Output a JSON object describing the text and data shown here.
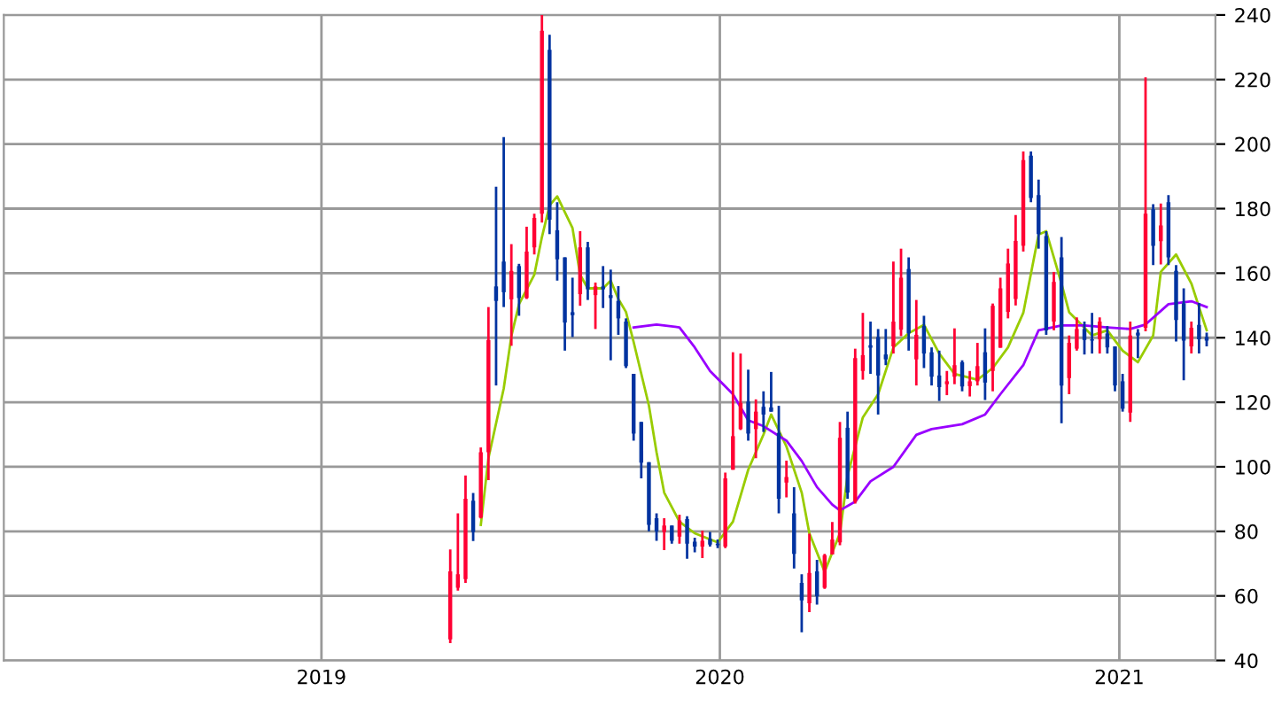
{
  "chart_data": {
    "type": "candlestick",
    "x": [
      "2019-04-29",
      "2019-05-06",
      "2019-05-13",
      "2019-05-20",
      "2019-05-27",
      "2019-06-03",
      "2019-06-10",
      "2019-06-17",
      "2019-06-24",
      "2019-07-01",
      "2019-07-08",
      "2019-07-15",
      "2019-07-22",
      "2019-07-29",
      "2019-08-05",
      "2019-08-12",
      "2019-08-19",
      "2019-08-26",
      "2019-09-02",
      "2019-09-09",
      "2019-09-16",
      "2019-09-23",
      "2019-09-30",
      "2019-10-07",
      "2019-10-14",
      "2019-10-21",
      "2019-10-28",
      "2019-11-04",
      "2019-11-11",
      "2019-11-18",
      "2019-11-25",
      "2019-12-02",
      "2019-12-09",
      "2019-12-16",
      "2019-12-23",
      "2019-12-30",
      "2020-01-06",
      "2020-01-13",
      "2020-01-20",
      "2020-01-27",
      "2020-02-03",
      "2020-02-10",
      "2020-02-17",
      "2020-02-24",
      "2020-03-02",
      "2020-03-09",
      "2020-03-16",
      "2020-03-23",
      "2020-03-30",
      "2020-04-06",
      "2020-04-13",
      "2020-04-20",
      "2020-04-27",
      "2020-05-04",
      "2020-05-11",
      "2020-05-18",
      "2020-05-25",
      "2020-06-01",
      "2020-06-08",
      "2020-06-15",
      "2020-06-22",
      "2020-06-29",
      "2020-07-06",
      "2020-07-13",
      "2020-07-20",
      "2020-07-27",
      "2020-08-03",
      "2020-08-10",
      "2020-08-17",
      "2020-08-24",
      "2020-08-31",
      "2020-09-07",
      "2020-09-14",
      "2020-09-21",
      "2020-09-28",
      "2020-10-05",
      "2020-10-12",
      "2020-10-19",
      "2020-10-26",
      "2020-11-02",
      "2020-11-09",
      "2020-11-16",
      "2020-11-23",
      "2020-11-30",
      "2020-12-07",
      "2020-12-14",
      "2020-12-21",
      "2020-12-28",
      "2021-01-04",
      "2021-01-11",
      "2021-01-18",
      "2021-01-25",
      "2021-02-01",
      "2021-02-08",
      "2021-02-15",
      "2021-02-22",
      "2021-03-01",
      "2021-03-08",
      "2021-03-15",
      "2021-03-22"
    ],
    "ohlc": [
      [
        46.5,
        74.4,
        45.4,
        67.6
      ],
      [
        62.5,
        85.6,
        61.6,
        66.7
      ],
      [
        65.2,
        97.3,
        64,
        90.1
      ],
      [
        89.5,
        91.9,
        77,
        79.8
      ],
      [
        84.3,
        106,
        84,
        104.5
      ],
      [
        104.5,
        149.5,
        95.9,
        139.3
      ],
      [
        155.9,
        186.8,
        125.2,
        151.4
      ],
      [
        163.6,
        202.2,
        149.5,
        154.1
      ],
      [
        151.9,
        169,
        137.5,
        160.7
      ],
      [
        162.2,
        162.9,
        146.8,
        152.3
      ],
      [
        152.3,
        174.4,
        152,
        166.7
      ],
      [
        168,
        178.4,
        165.8,
        177.1
      ],
      [
        178.4,
        240,
        175.7,
        235.1
      ],
      [
        229.2,
        233.9,
        172.1,
        176.6
      ],
      [
        173.3,
        182,
        157.7,
        164.3
      ],
      [
        164.9,
        164.9,
        136,
        144.7
      ],
      [
        147.9,
        158.6,
        140.2,
        147
      ],
      [
        153.5,
        173,
        149.9,
        168
      ],
      [
        168,
        169.7,
        151.7,
        155
      ],
      [
        153.2,
        157.1,
        142.7,
        155.9
      ],
      [
        155.9,
        162.2,
        149.2,
        155
      ],
      [
        153.2,
        161.1,
        133,
        152.3
      ],
      [
        151.4,
        156,
        140.9,
        146
      ],
      [
        145,
        146,
        130.6,
        131.2
      ],
      [
        128.8,
        128.8,
        108.1,
        110.3
      ],
      [
        113.9,
        113.9,
        96.4,
        101.3
      ],
      [
        101.4,
        101.4,
        80,
        82
      ],
      [
        84.1,
        85.6,
        77.1,
        80
      ],
      [
        79.8,
        84.1,
        74.2,
        81.8
      ],
      [
        81.8,
        81.8,
        76.2,
        77.1
      ],
      [
        78.4,
        85.2,
        76.2,
        83.4
      ],
      [
        83.8,
        84.7,
        71.5,
        76.2
      ],
      [
        76.8,
        78,
        73.5,
        75.3
      ],
      [
        75.3,
        80.2,
        71.7,
        77.1
      ],
      [
        77.7,
        79.8,
        75.3,
        75.9
      ],
      [
        76.2,
        77.5,
        74.8,
        75.7
      ],
      [
        75.3,
        98.2,
        74.8,
        96.4
      ],
      [
        99.1,
        135.5,
        99.1,
        109.5
      ],
      [
        111.7,
        135.1,
        111.4,
        119.8
      ],
      [
        120.2,
        130.1,
        108.1,
        110.3
      ],
      [
        111.7,
        120.9,
        102.7,
        117.1
      ],
      [
        118.6,
        123.4,
        110.8,
        116.2
      ],
      [
        118.4,
        129.4,
        117.1,
        117.1
      ],
      [
        110.5,
        118.9,
        85.6,
        90.1
      ],
      [
        95.1,
        101.9,
        90.5,
        96.8
      ],
      [
        85.6,
        93.7,
        68.5,
        73
      ],
      [
        64,
        66.7,
        48.7,
        58.6
      ],
      [
        57.7,
        79.3,
        55,
        67.1
      ],
      [
        67.6,
        71.2,
        57.3,
        59.9
      ],
      [
        62.5,
        73,
        62.2,
        72.6
      ],
      [
        72.9,
        82.9,
        72.9,
        77.5
      ],
      [
        76.6,
        113.9,
        75.7,
        109
      ],
      [
        112.1,
        117.1,
        90.1,
        92
      ],
      [
        89.2,
        136.6,
        88.6,
        133.7
      ],
      [
        129.7,
        147.7,
        127,
        134.6
      ],
      [
        137.7,
        145,
        128.8,
        136.9
      ],
      [
        140.2,
        142.7,
        116.2,
        128.3
      ],
      [
        134.8,
        142.7,
        131.5,
        133.3
      ],
      [
        137.3,
        163.6,
        135.1,
        145
      ],
      [
        142.5,
        167.6,
        140.5,
        158.6
      ],
      [
        161.3,
        164.9,
        136,
        141.4
      ],
      [
        133.3,
        151.7,
        125.2,
        140.9
      ],
      [
        143.6,
        146.8,
        130.6,
        135.1
      ],
      [
        135.5,
        137,
        125.2,
        127.9
      ],
      [
        128.3,
        136,
        120.4,
        124.7
      ],
      [
        125.6,
        129.7,
        122.2,
        126.5
      ],
      [
        127.9,
        142.9,
        125.6,
        131.5
      ],
      [
        132.4,
        133,
        123.4,
        124.9
      ],
      [
        125,
        129.7,
        121.8,
        126.5
      ],
      [
        126.5,
        138.4,
        125.2,
        131.2
      ],
      [
        135.5,
        142.9,
        120.7,
        126.1
      ],
      [
        129.7,
        150.6,
        123.4,
        149.9
      ],
      [
        136.9,
        158.6,
        136.9,
        155.3
      ],
      [
        148,
        167.6,
        146,
        163
      ],
      [
        152,
        178,
        150,
        170
      ],
      [
        168.5,
        197.7,
        166.7,
        195
      ],
      [
        196.4,
        197.7,
        182,
        183.3
      ],
      [
        184.2,
        189,
        167.6,
        172.1
      ],
      [
        171.5,
        173,
        140.9,
        142.3
      ],
      [
        145,
        160.4,
        142.3,
        157.3
      ],
      [
        164.9,
        171.2,
        113.5,
        125.2
      ],
      [
        127.5,
        140.7,
        122.5,
        138.4
      ],
      [
        136.6,
        146.3,
        136,
        142.7
      ],
      [
        142.7,
        145,
        134.8,
        139.3
      ],
      [
        139.5,
        147.7,
        135.1,
        139.1
      ],
      [
        139.5,
        146.3,
        135.1,
        145
      ],
      [
        141.3,
        143.6,
        135.1,
        137
      ],
      [
        137.3,
        137.3,
        123.4,
        125.2
      ],
      [
        126.5,
        128.8,
        117.1,
        118
      ],
      [
        116.8,
        145,
        113.9,
        140.7
      ],
      [
        141.6,
        142.7,
        133.7,
        140.7
      ],
      [
        143.1,
        220.7,
        142,
        178.4
      ],
      [
        179.8,
        181.4,
        162.5,
        168.5
      ],
      [
        169.9,
        181.6,
        162.7,
        174.8
      ],
      [
        182,
        184.2,
        162.5,
        164.9
      ],
      [
        160.7,
        162.5,
        138.8,
        145.5
      ],
      [
        150.6,
        155.3,
        126.8,
        139.1
      ],
      [
        137.3,
        145,
        135.1,
        143.1
      ],
      [
        144,
        150.8,
        135.1,
        139.5
      ],
      [
        140.2,
        141.6,
        137.3,
        139.1
      ]
    ],
    "colors": [
      "#ff0033",
      "#ff0033",
      "#ff0033",
      "#0033a0",
      "#ff0033",
      "#ff0033",
      "#0033a0",
      "#0033a0",
      "#ff0033",
      "#0033a0",
      "#ff0033",
      "#ff0033",
      "#ff0033",
      "#0033a0",
      "#0033a0",
      "#0033a0",
      "#0033a0",
      "#ff0033",
      "#0033a0",
      "#ff0033",
      "#0033a0",
      "#0033a0",
      "#0033a0",
      "#0033a0",
      "#0033a0",
      "#0033a0",
      "#0033a0",
      "#0033a0",
      "#ff0033",
      "#0033a0",
      "#ff0033",
      "#0033a0",
      "#0033a0",
      "#ff0033",
      "#0033a0",
      "#0033a0",
      "#ff0033",
      "#ff0033",
      "#ff0033",
      "#0033a0",
      "#ff0033",
      "#0033a0",
      "#0033a0",
      "#0033a0",
      "#ff0033",
      "#0033a0",
      "#0033a0",
      "#ff0033",
      "#0033a0",
      "#ff0033",
      "#ff0033",
      "#ff0033",
      "#0033a0",
      "#ff0033",
      "#ff0033",
      "#0033a0",
      "#0033a0",
      "#0033a0",
      "#ff0033",
      "#ff0033",
      "#0033a0",
      "#ff0033",
      "#0033a0",
      "#0033a0",
      "#0033a0",
      "#ff0033",
      "#ff0033",
      "#0033a0",
      "#ff0033",
      "#ff0033",
      "#0033a0",
      "#ff0033",
      "#ff0033",
      "#ff0033",
      "#ff0033",
      "#ff0033",
      "#0033a0",
      "#0033a0",
      "#0033a0",
      "#ff0033",
      "#0033a0",
      "#ff0033",
      "#ff0033",
      "#0033a0",
      "#0033a0",
      "#ff0033",
      "#0033a0",
      "#0033a0",
      "#0033a0",
      "#ff0033",
      "#0033a0",
      "#ff0033",
      "#0033a0",
      "#ff0033",
      "#0033a0",
      "#0033a0",
      "#0033a0",
      "#ff0033",
      "#0033a0",
      "#0033a0"
    ],
    "series": [
      {
        "type": "line",
        "color": "#99cc00",
        "x": [
          "2019-05-27",
          "2019-06-03",
          "2019-06-17",
          "2019-06-24",
          "2019-07-01",
          "2019-07-15",
          "2019-07-22",
          "2019-07-29",
          "2019-08-05",
          "2019-08-19",
          "2019-08-26",
          "2019-09-02",
          "2019-09-16",
          "2019-09-23",
          "2019-09-30",
          "2019-10-07",
          "2019-10-14",
          "2019-10-28",
          "2019-11-04",
          "2019-11-11",
          "2019-11-25",
          "2019-12-09",
          "2019-12-30",
          "2020-01-13",
          "2020-01-27",
          "2020-02-10",
          "2020-02-17",
          "2020-03-02",
          "2020-03-16",
          "2020-03-23",
          "2020-04-06",
          "2020-04-20",
          "2020-04-27",
          "2020-05-11",
          "2020-05-25",
          "2020-06-08",
          "2020-06-22",
          "2020-07-06",
          "2020-07-20",
          "2020-08-03",
          "2020-08-24",
          "2020-09-07",
          "2020-09-21",
          "2020-10-05",
          "2020-10-19",
          "2020-10-26",
          "2020-11-09",
          "2020-11-16",
          "2020-12-07",
          "2020-12-21",
          "2021-01-04",
          "2021-01-18",
          "2021-02-01",
          "2021-02-08",
          "2021-02-22",
          "2021-03-08",
          "2021-03-15",
          "2021-03-22"
        ],
        "values": [
          82,
          102.7,
          124.3,
          140.5,
          150.4,
          159.5,
          171.2,
          181,
          183.8,
          174,
          159.5,
          155.3,
          155.3,
          157.7,
          152,
          148,
          138.7,
          119,
          104.5,
          92,
          83,
          79.4,
          76.6,
          83,
          99.1,
          110,
          116.2,
          106.3,
          92,
          79.4,
          67.5,
          79.4,
          97.3,
          115.3,
          122.5,
          137,
          141.4,
          144,
          135.1,
          128.8,
          127,
          130.6,
          137,
          147.7,
          172,
          173,
          156.8,
          147.9,
          140.7,
          142.3,
          136,
          132.4,
          140.7,
          160.4,
          165.8,
          156.8,
          149.5,
          142.3
        ]
      },
      {
        "type": "line",
        "color": "#9900ff",
        "x": [
          "2019-10-14",
          "2019-11-04",
          "2019-11-25",
          "2019-12-09",
          "2019-12-23",
          "2020-01-13",
          "2020-01-27",
          "2020-02-10",
          "2020-03-02",
          "2020-03-16",
          "2020-03-30",
          "2020-04-13",
          "2020-04-20",
          "2020-05-04",
          "2020-05-18",
          "2020-06-08",
          "2020-06-29",
          "2020-07-13",
          "2020-08-10",
          "2020-08-31",
          "2020-09-14",
          "2020-10-05",
          "2020-10-19",
          "2020-11-09",
          "2020-11-30",
          "2020-12-21",
          "2021-01-11",
          "2021-01-25",
          "2021-02-15",
          "2021-03-08",
          "2021-03-22"
        ],
        "values": [
          143.2,
          144.1,
          143.2,
          137,
          129.7,
          122.5,
          114.4,
          112.6,
          108.1,
          101.8,
          93.7,
          88.3,
          86.5,
          89.2,
          95.5,
          100,
          109.9,
          111.7,
          113.2,
          116.2,
          122.5,
          131.5,
          142.3,
          143.8,
          143.8,
          143.2,
          142.7,
          144.1,
          150.4,
          151.3,
          149.5
        ]
      }
    ],
    "xlim": [
      "2018-03-16",
      "2021-03-30"
    ],
    "xticks": [
      {
        "value": "2019-01-01",
        "label": "2019"
      },
      {
        "value": "2020-01-01",
        "label": "2020"
      },
      {
        "value": "2021-01-01",
        "label": "2021"
      }
    ],
    "ylim": [
      40,
      240
    ],
    "yticks": [
      40,
      60,
      80,
      100,
      120,
      140,
      160,
      180,
      200,
      220,
      240
    ],
    "grid": true
  }
}
